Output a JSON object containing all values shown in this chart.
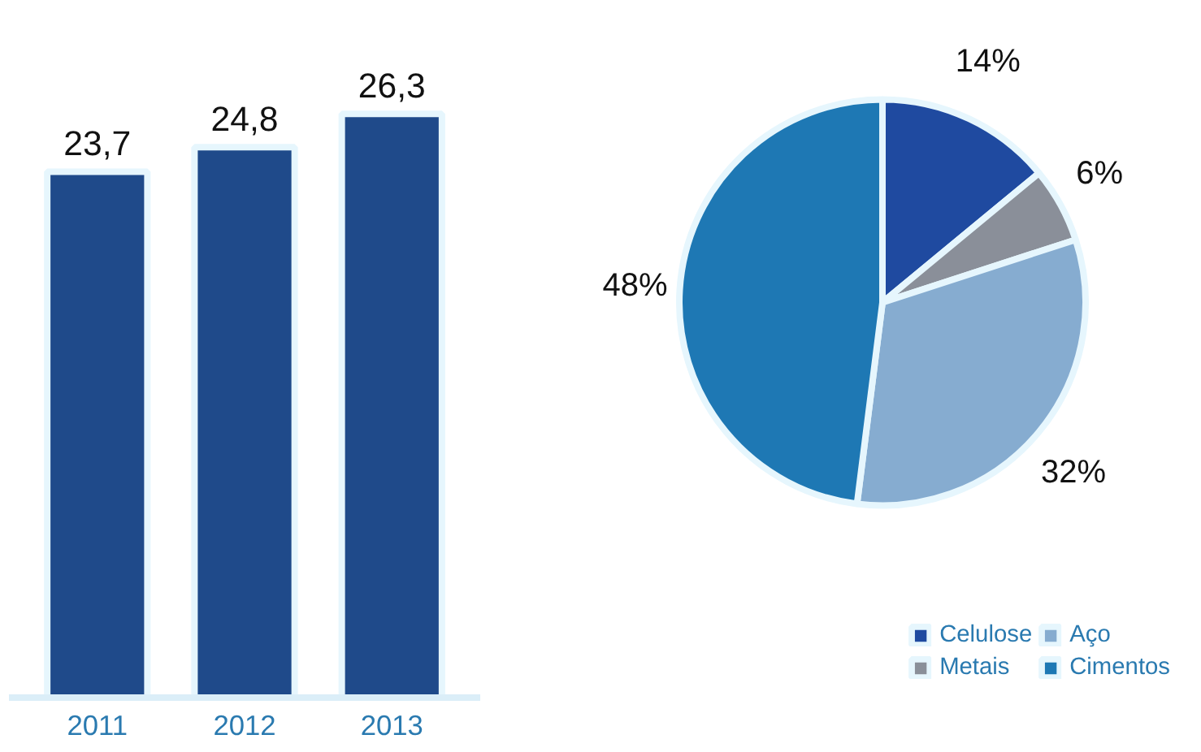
{
  "chart_data": [
    {
      "type": "bar",
      "categories": [
        "2011",
        "2012",
        "2013"
      ],
      "values": [
        23.7,
        24.8,
        26.3
      ],
      "value_labels": [
        "23,7",
        "24,8",
        "26,3"
      ],
      "color": "#1f4a8a",
      "tick_labels": "x",
      "grid": false
    },
    {
      "type": "pie",
      "categories": [
        "Celulose",
        "Metais",
        "Aço",
        "Cimentos"
      ],
      "values": [
        14,
        6,
        32,
        48
      ],
      "colors": [
        "#1f4aa0",
        "#8a8f99",
        "#86acd0",
        "#1e78b4"
      ],
      "value_labels": [
        "14%",
        "6%",
        "32%",
        "48%"
      ],
      "legend": "bottom right"
    }
  ]
}
